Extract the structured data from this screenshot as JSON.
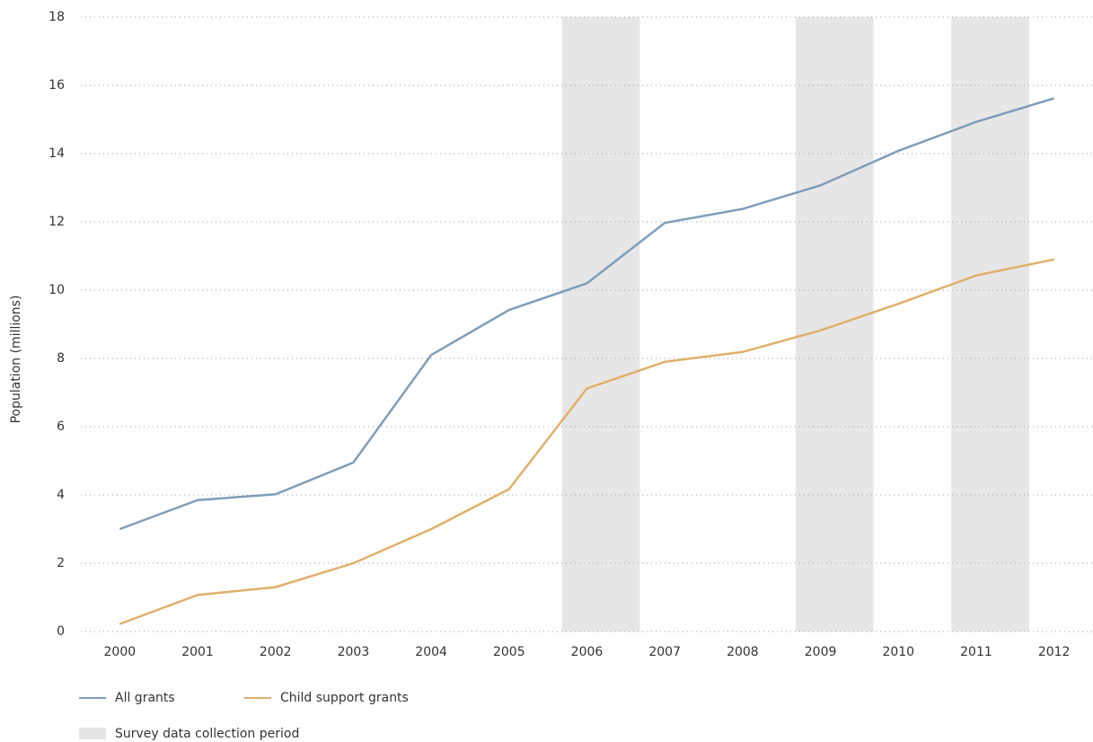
{
  "chart_data": {
    "type": "line",
    "y_label": "Population (millions)",
    "x": [
      2000,
      2001,
      2002,
      2003,
      2004,
      2005,
      2006,
      2007,
      2008,
      2009,
      2010,
      2011,
      2012
    ],
    "xlim": [
      1999.5,
      2012.5
    ],
    "xticks": [
      2000,
      2001,
      2002,
      2003,
      2004,
      2005,
      2006,
      2007,
      2008,
      2009,
      2010,
      2011,
      2012
    ],
    "ylim": [
      0,
      18
    ],
    "yticks": [
      0,
      2,
      4,
      6,
      8,
      10,
      12,
      14,
      16,
      18
    ],
    "grid": true,
    "series": [
      {
        "name": "All grants",
        "color": "#7f9db9",
        "values": [
          3.0,
          3.85,
          4.02,
          4.95,
          8.1,
          9.42,
          10.2,
          11.97,
          12.38,
          13.07,
          14.08,
          14.93,
          15.62
        ]
      },
      {
        "name": "Child support grants",
        "color": "#e0b06a",
        "values": [
          0.22,
          1.07,
          1.3,
          2.0,
          3.0,
          4.17,
          7.12,
          7.9,
          8.19,
          8.82,
          9.6,
          10.43,
          10.9
        ]
      }
    ],
    "shaded_regions": {
      "label": "Survey data collection period",
      "color": "#e6e6e6",
      "ranges": [
        [
          2005.68,
          2006.68
        ],
        [
          2008.68,
          2009.68
        ],
        [
          2010.68,
          2011.68
        ]
      ]
    }
  }
}
